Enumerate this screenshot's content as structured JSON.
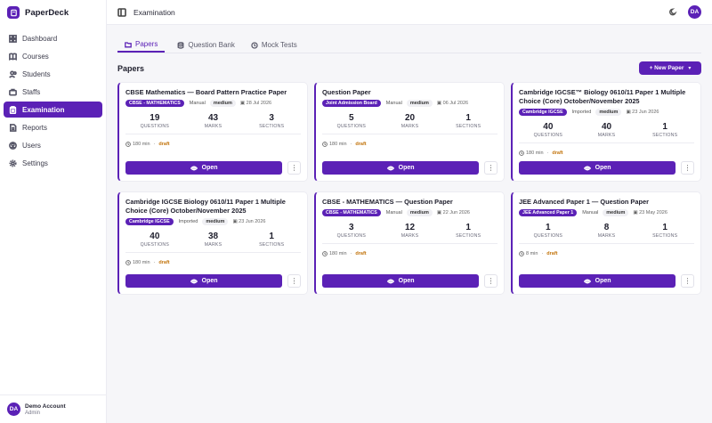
{
  "brand": {
    "name": "PaperDeck"
  },
  "sidebar": {
    "items": [
      {
        "label": "Dashboard",
        "icon": "dashboard-icon"
      },
      {
        "label": "Courses",
        "icon": "book-icon"
      },
      {
        "label": "Students",
        "icon": "users-icon"
      },
      {
        "label": "Staffs",
        "icon": "briefcase-icon"
      },
      {
        "label": "Examination",
        "icon": "clipboard-icon",
        "active": true
      },
      {
        "label": "Reports",
        "icon": "file-icon"
      },
      {
        "label": "Users",
        "icon": "user-icon"
      },
      {
        "label": "Settings",
        "icon": "gear-icon"
      }
    ]
  },
  "account": {
    "initials": "DA",
    "name": "Demo Account",
    "role": "Admin"
  },
  "header": {
    "title": "Examination",
    "avatar": "DA"
  },
  "tabs": [
    {
      "label": "Papers",
      "icon": "folder-icon",
      "active": true
    },
    {
      "label": "Question Bank",
      "icon": "database-icon"
    },
    {
      "label": "Mock Tests",
      "icon": "timer-icon"
    }
  ],
  "main": {
    "section_title": "Papers",
    "new_button": "+ New Paper",
    "open_label": "Open",
    "more_label": "⋮"
  },
  "colors": {
    "accent": "#5b21b6",
    "draft": "#c2740c"
  },
  "cards": [
    {
      "title": "CBSE Mathematics — Board Pattern Practice Paper",
      "board": "CBSE - MATHEMATICS",
      "source": "Manual",
      "level": "medium",
      "date": "28 Jul 2026",
      "questions": "19",
      "marks": "43",
      "sections": "3",
      "duration": "180 min",
      "status": "draft"
    },
    {
      "title": "Question Paper",
      "board": "Joint Admission Board",
      "source": "Manual",
      "level": "medium",
      "date": "06 Jul 2026",
      "questions": "5",
      "marks": "20",
      "sections": "1",
      "duration": "180 min",
      "status": "draft"
    },
    {
      "title": "Cambridge IGCSE™ Biology 0610/11 Paper 1 Multiple Choice (Core) October/November 2025",
      "board": "Cambridge IGCSE",
      "source": "Imported",
      "level": "medium",
      "date": "23 Jun 2026",
      "questions": "40",
      "marks": "40",
      "sections": "1",
      "duration": "180 min",
      "status": "draft"
    },
    {
      "title": "Cambridge IGCSE Biology 0610/11 Paper 1 Multiple Choice (Core) October/November 2025",
      "board": "Cambridge IGCSE",
      "source": "Imported",
      "level": "medium",
      "date": "23 Jun 2026",
      "questions": "40",
      "marks": "38",
      "sections": "1",
      "duration": "180 min",
      "status": "draft"
    },
    {
      "title": "CBSE - MATHEMATICS — Question Paper",
      "board": "CBSE - MATHEMATICS",
      "source": "Manual",
      "level": "medium",
      "date": "22 Jun 2026",
      "questions": "3",
      "marks": "12",
      "sections": "1",
      "duration": "180 min",
      "status": "draft"
    },
    {
      "title": "JEE Advanced Paper 1 — Question Paper",
      "board": "JEE Advanced Paper 1",
      "source": "Manual",
      "level": "medium",
      "date": "23 May 2026",
      "questions": "1",
      "marks": "8",
      "sections": "1",
      "duration": "8 min",
      "status": "draft"
    }
  ],
  "stat_labels": {
    "questions": "QUESTIONS",
    "marks": "MARKS",
    "sections": "SECTIONS"
  }
}
